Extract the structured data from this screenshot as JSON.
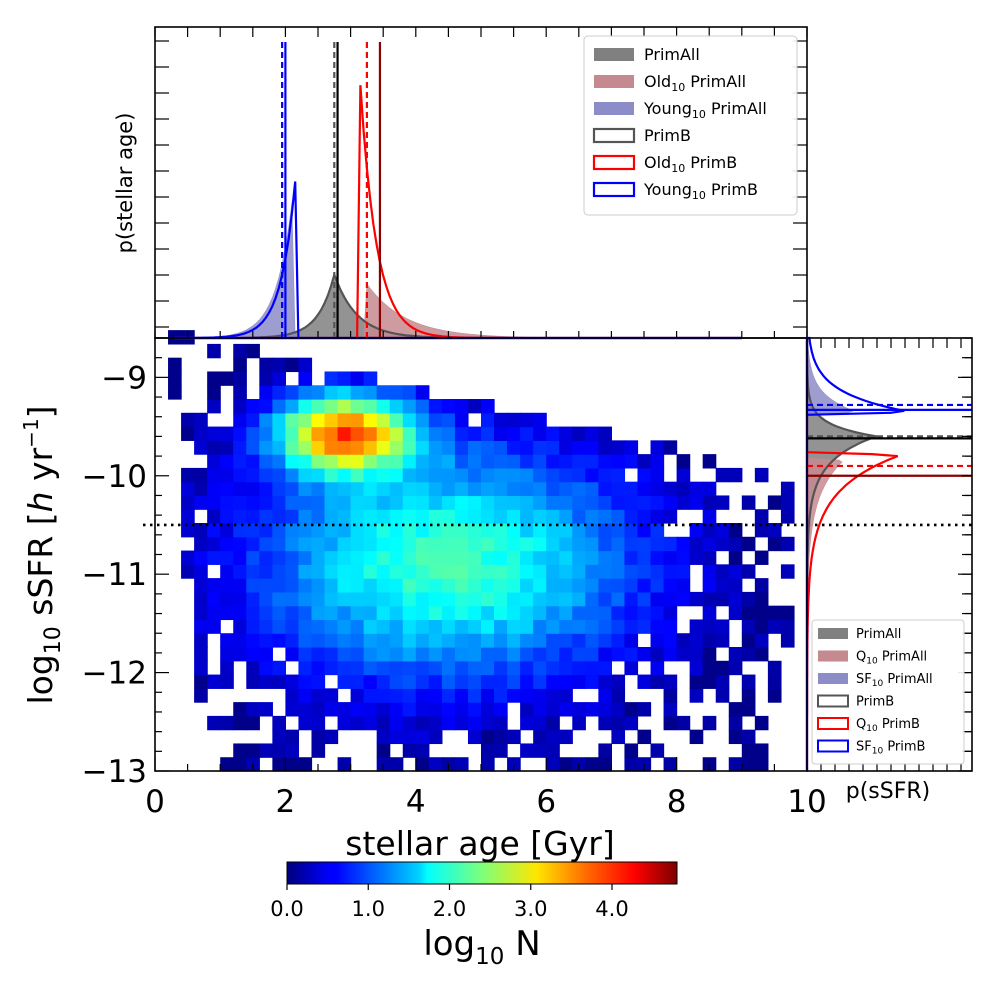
{
  "chart_data": [
    {
      "id": "main_heatmap",
      "type": "heatmap",
      "xlabel": "stellar age [Gyr]",
      "ylabel_parts": {
        "pre": "log",
        "sub": "10",
        "mid": " sSFR [",
        "italic": "h",
        "post": " yr",
        "sup": "−1",
        "end": "]"
      },
      "xlim": [
        0,
        10
      ],
      "ylim": [
        -13,
        -8.6
      ],
      "xticks": [
        0,
        2,
        4,
        6,
        8
      ],
      "xtick_labels": [
        "0",
        "2",
        "4",
        "6",
        "8"
      ],
      "yticks": [
        -13,
        -12,
        -11,
        -10,
        -9
      ],
      "ytick_labels": [
        "−13",
        "−12",
        "−11",
        "−10",
        "−9"
      ],
      "reference_line": {
        "y": -10.5,
        "style": "dotted"
      },
      "colormap": "jet",
      "colorbar": {
        "range": [
          0,
          4.8
        ],
        "ticks": [
          0,
          1,
          2,
          3,
          4
        ],
        "tick_labels": [
          "0.0",
          "1.0",
          "2.0",
          "3.0",
          "4.0"
        ],
        "label_parts": {
          "pre": "log",
          "sub": "10",
          "post": " N"
        }
      },
      "cell_size": {
        "x_gyr": 0.2,
        "y_dex": 0.14
      },
      "density_model": {
        "peak_age": 2.9,
        "peak_ssfr": -9.55,
        "peak_sigma_age": 0.75,
        "peak_sigma_ssfr": 0.28,
        "peak_amp": 3.4,
        "ridge_ssfr": -10.9,
        "ridge_sigma_age": 2.2,
        "ridge_center_age": 4.5,
        "ridge_sigma_ssfr": 0.9,
        "ridge_amp": 2.1
      }
    },
    {
      "id": "top_age_histogram",
      "type": "line",
      "ylabel": "p(stellar age)",
      "xlim": [
        0,
        10
      ],
      "series": [
        {
          "name": "PrimAll",
          "style": "filled",
          "color": "#808080",
          "center": 2.75,
          "width": 0.45
        },
        {
          "name": "Old",
          "name_sub": "10",
          "name_suffix": " PrimAll",
          "style": "filled",
          "color": "#c48a8f",
          "center": 3.25,
          "width": 0.35
        },
        {
          "name": "Young",
          "name_sub": "10",
          "name_suffix": " PrimAll",
          "style": "filled",
          "color": "#8c8cc8",
          "center": 2.1,
          "width": 0.3
        },
        {
          "name": "PrimB",
          "style": "step",
          "color": "#555555",
          "center": 2.75,
          "width": 0.45
        },
        {
          "name": "Old",
          "name_sub": "10",
          "name_suffix": " PrimB",
          "style": "step",
          "color": "#ff0000",
          "center": 3.15,
          "width": 0.3
        },
        {
          "name": "Young",
          "name_sub": "10",
          "name_suffix": " PrimB",
          "style": "step",
          "color": "#0000ff",
          "center": 2.15,
          "width": 0.25
        }
      ],
      "vlines": [
        {
          "x": 1.95,
          "color": "#0000ff",
          "style": "dashed"
        },
        {
          "x": 2.0,
          "color": "#0000ff",
          "style": "solid"
        },
        {
          "x": 2.75,
          "color": "#555555",
          "style": "dashed"
        },
        {
          "x": 2.8,
          "color": "#000000",
          "style": "solid"
        },
        {
          "x": 3.25,
          "color": "#ff0000",
          "style": "dashed"
        },
        {
          "x": 3.45,
          "color": "#8b0000",
          "style": "solid"
        }
      ],
      "legend_position": "upper-right"
    },
    {
      "id": "right_ssfr_histogram",
      "type": "line",
      "xlabel": "p(sSFR)",
      "ylim": [
        -13,
        -8.6
      ],
      "series": [
        {
          "name": "PrimAll",
          "style": "filled",
          "color": "#808080"
        },
        {
          "name": "Q",
          "name_sub": "10",
          "name_suffix": " PrimAll",
          "style": "filled",
          "color": "#c48a8f"
        },
        {
          "name": "SF",
          "name_sub": "10",
          "name_suffix": " PrimAll",
          "style": "filled",
          "color": "#8c8cc8"
        },
        {
          "name": "PrimB",
          "style": "step",
          "color": "#555555"
        },
        {
          "name": "Q",
          "name_sub": "10",
          "name_suffix": " PrimB",
          "style": "step",
          "color": "#ff0000"
        },
        {
          "name": "SF",
          "name_sub": "10",
          "name_suffix": " PrimB",
          "style": "step",
          "color": "#0000ff"
        }
      ],
      "hlines": [
        {
          "y": -9.28,
          "color": "#0000ff",
          "style": "dashed"
        },
        {
          "y": -9.33,
          "color": "#0000ff",
          "style": "solid"
        },
        {
          "y": -9.6,
          "color": "#555555",
          "style": "dashed"
        },
        {
          "y": -9.62,
          "color": "#000000",
          "style": "solid"
        },
        {
          "y": -9.9,
          "color": "#ff0000",
          "style": "dashed"
        },
        {
          "y": -10.0,
          "color": "#8b0000",
          "style": "solid"
        }
      ],
      "legend_position": "lower-right"
    }
  ]
}
